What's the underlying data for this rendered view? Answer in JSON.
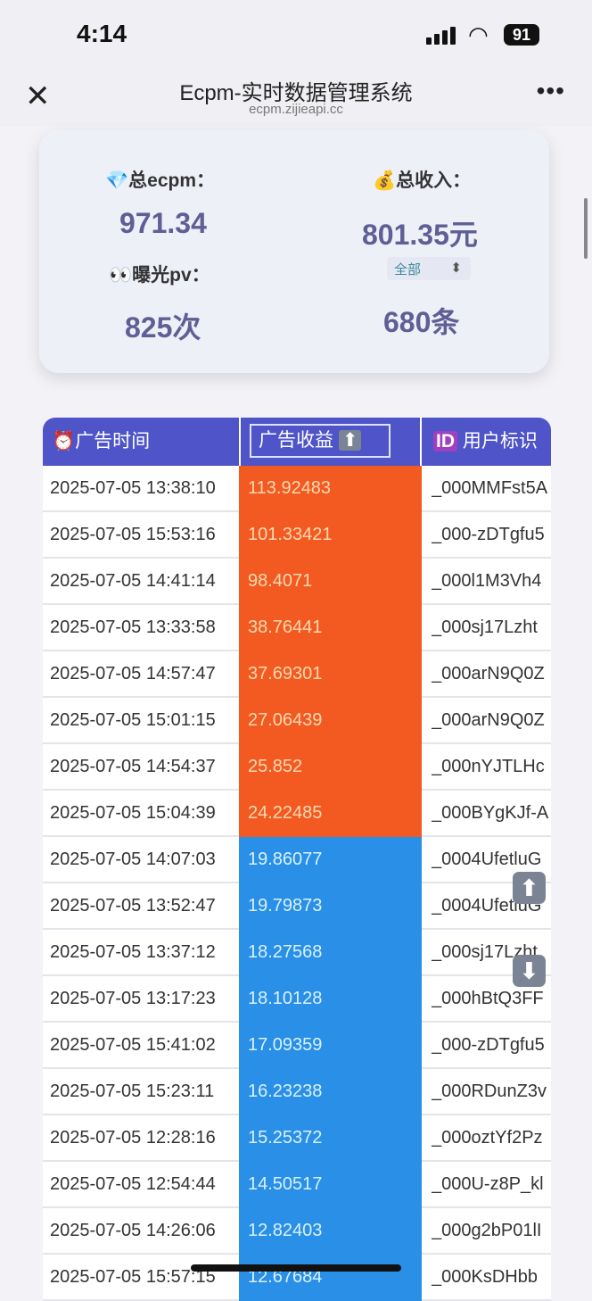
{
  "status_bar": {
    "time": "4:14",
    "battery": "91"
  },
  "nav": {
    "title": "Ecpm-实时数据管理系统",
    "url": "ecpm.zijieapi.cc"
  },
  "summary": {
    "ecpm_label": "总ecpm：",
    "ecpm_value": "971.34",
    "income_label": "总收入：",
    "income_value": "801.35元",
    "pv_label": "曝光pv：",
    "pv_value": "825次",
    "filter_value": "全部",
    "count_value": "680条"
  },
  "table": {
    "headers": [
      "广告时间",
      "广告收益",
      "用户标识"
    ],
    "colors": {
      "high": "#f25a22",
      "low": "#2a8fe6",
      "header": "#4f55c8"
    },
    "rows": [
      {
        "time": "2025-07-05 13:38:10",
        "revenue": "113.92483",
        "user": "_000MMFst5A"
      },
      {
        "time": "2025-07-05 15:53:16",
        "revenue": "101.33421",
        "user": "_000-zDTgfu5"
      },
      {
        "time": "2025-07-05 14:41:14",
        "revenue": "98.4071",
        "user": "_000l1M3Vh4"
      },
      {
        "time": "2025-07-05 13:33:58",
        "revenue": "38.76441",
        "user": "_000sj17Lzht"
      },
      {
        "time": "2025-07-05 14:57:47",
        "revenue": "37.69301",
        "user": "_000arN9Q0Z"
      },
      {
        "time": "2025-07-05 15:01:15",
        "revenue": "27.06439",
        "user": "_000arN9Q0Z"
      },
      {
        "time": "2025-07-05 14:54:37",
        "revenue": "25.852",
        "user": "_000nYJTLHc"
      },
      {
        "time": "2025-07-05 15:04:39",
        "revenue": "24.22485",
        "user": "_000BYgKJf-A"
      },
      {
        "time": "2025-07-05 14:07:03",
        "revenue": "19.86077",
        "user": "_0004UfetluG"
      },
      {
        "time": "2025-07-05 13:52:47",
        "revenue": "19.79873",
        "user": "_0004UfetluG"
      },
      {
        "time": "2025-07-05 13:37:12",
        "revenue": "18.27568",
        "user": "_000sj17Lzht"
      },
      {
        "time": "2025-07-05 13:17:23",
        "revenue": "18.10128",
        "user": "_000hBtQ3FF"
      },
      {
        "time": "2025-07-05 15:41:02",
        "revenue": "17.09359",
        "user": "_000-zDTgfu5"
      },
      {
        "time": "2025-07-05 15:23:11",
        "revenue": "16.23238",
        "user": "_000RDunZ3v"
      },
      {
        "time": "2025-07-05 12:28:16",
        "revenue": "15.25372",
        "user": "_000oztYf2Pz"
      },
      {
        "time": "2025-07-05 12:54:44",
        "revenue": "14.50517",
        "user": "_000U-z8P_kl"
      },
      {
        "time": "2025-07-05 14:26:06",
        "revenue": "12.82403",
        "user": "_000g2bP01lI"
      },
      {
        "time": "2025-07-05 15:57:15",
        "revenue": "12.67684",
        "user": "_000KsDHbb"
      }
    ]
  }
}
